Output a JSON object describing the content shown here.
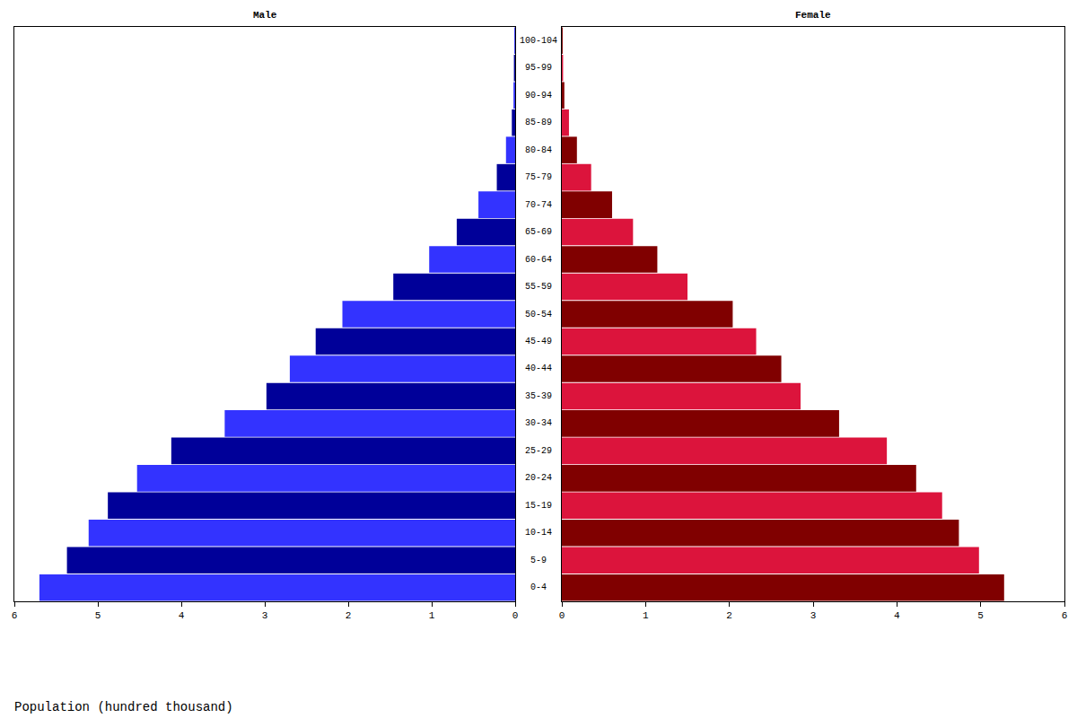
{
  "chart_data": [
    {
      "type": "bar",
      "title": "Male",
      "orientation": "horizontal",
      "xlabel": "Population (hundred thousand)",
      "categories": [
        "0-4",
        "5-9",
        "10-14",
        "15-19",
        "20-24",
        "25-29",
        "30-34",
        "35-39",
        "40-44",
        "45-49",
        "50-54",
        "55-59",
        "60-64",
        "65-69",
        "70-74",
        "75-79",
        "80-84",
        "85-89",
        "90-94",
        "95-99",
        "100-104"
      ],
      "values": [
        5.7,
        5.37,
        5.11,
        4.88,
        4.53,
        4.12,
        3.48,
        2.98,
        2.7,
        2.39,
        2.07,
        1.46,
        1.03,
        0.7,
        0.44,
        0.22,
        0.11,
        0.04,
        0.02,
        0.015,
        0.01
      ],
      "colors": [
        "#3333ff",
        "#000099",
        "#3333ff",
        "#000099",
        "#3333ff",
        "#000099",
        "#3333ff",
        "#000099",
        "#3333ff",
        "#000099",
        "#3333ff",
        "#000099",
        "#3333ff",
        "#000099",
        "#3333ff",
        "#000099",
        "#3333ff",
        "#000099",
        "#3333ff",
        "#000099",
        "#3333ff"
      ],
      "xlim": [
        6,
        0
      ],
      "xticks": [
        6,
        5,
        4,
        3,
        2,
        1,
        0
      ],
      "grid": false
    },
    {
      "type": "bar",
      "title": "Female",
      "orientation": "horizontal",
      "categories": [
        "0-4",
        "5-9",
        "10-14",
        "15-19",
        "20-24",
        "25-29",
        "30-34",
        "35-39",
        "40-44",
        "45-49",
        "50-54",
        "55-59",
        "60-64",
        "65-69",
        "70-74",
        "75-79",
        "80-84",
        "85-89",
        "90-94",
        "95-99",
        "100-104"
      ],
      "values": [
        5.28,
        4.98,
        4.74,
        4.54,
        4.23,
        3.88,
        3.31,
        2.85,
        2.62,
        2.32,
        2.04,
        1.5,
        1.14,
        0.85,
        0.6,
        0.35,
        0.18,
        0.085,
        0.03,
        0.015,
        0.01
      ],
      "colors": [
        "#800000",
        "#dc143c",
        "#800000",
        "#dc143c",
        "#800000",
        "#dc143c",
        "#800000",
        "#dc143c",
        "#800000",
        "#dc143c",
        "#800000",
        "#dc143c",
        "#800000",
        "#dc143c",
        "#800000",
        "#dc143c",
        "#800000",
        "#dc143c",
        "#800000",
        "#dc143c",
        "#800000"
      ],
      "xlim": [
        0,
        6
      ],
      "xticks": [
        0,
        1,
        2,
        3,
        4,
        5,
        6
      ],
      "grid": false
    }
  ]
}
